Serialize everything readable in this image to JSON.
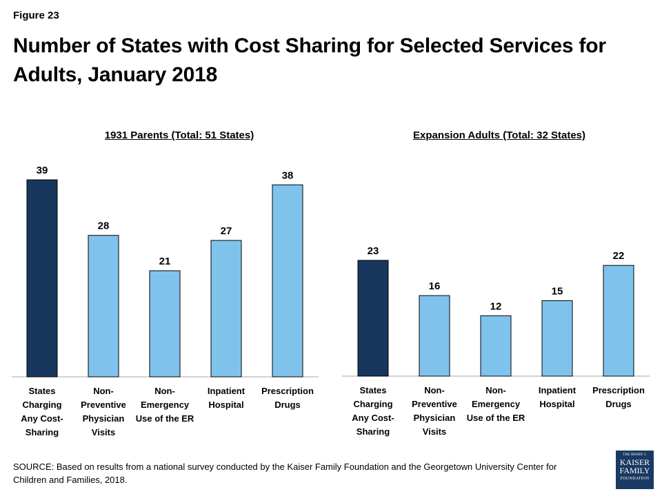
{
  "figure_label": "Figure 23",
  "title": "Number of States with Cost Sharing for Selected Services for Adults, January 2018",
  "colors": {
    "highlight": "#17375e",
    "default": "#7fc3ec",
    "edge": "#000000"
  },
  "chart_data": [
    {
      "type": "bar",
      "title": "1931 Parents (Total: 51 States)",
      "categories": [
        "States Charging Any Cost-Sharing",
        "Non-Preventive Physician Visits",
        "Non-Emergency Use of the ER",
        "Inpatient Hospital",
        "Prescription Drugs"
      ],
      "category_lines": [
        [
          "States",
          "Charging",
          "Any Cost-",
          "Sharing"
        ],
        [
          "Non-",
          "Preventive",
          "Physician",
          "Visits"
        ],
        [
          "Non-",
          "Emergency",
          "Use of the ER"
        ],
        [
          "Inpatient",
          "Hospital"
        ],
        [
          "Prescription",
          "Drugs"
        ]
      ],
      "values": [
        39,
        28,
        21,
        27,
        38
      ],
      "data_labels": [
        "39",
        "28",
        "21",
        "27",
        "38"
      ],
      "bar_colors": [
        "#17375e",
        "#7fc3ec",
        "#7fc3ec",
        "#7fc3ec",
        "#7fc3ec"
      ],
      "ylim": [
        0,
        39
      ]
    },
    {
      "type": "bar",
      "title": "Expansion Adults (Total: 32 States)",
      "categories": [
        "States Charging Any Cost-Sharing",
        "Non-Preventive Physician Visits",
        "Non-Emergency Use of the ER",
        "Inpatient Hospital",
        "Prescription Drugs"
      ],
      "category_lines": [
        [
          "States",
          "Charging",
          "Any Cost-",
          "Sharing"
        ],
        [
          "Non-",
          "Preventive",
          "Physician",
          "Visits"
        ],
        [
          "Non-",
          "Emergency",
          "Use of the ER"
        ],
        [
          "Inpatient",
          "Hospital"
        ],
        [
          "Prescription",
          "Drugs"
        ]
      ],
      "values": [
        23,
        16,
        12,
        15,
        22
      ],
      "data_labels": [
        "23",
        "16",
        "12",
        "15",
        "22"
      ],
      "bar_colors": [
        "#17375e",
        "#7fc3ec",
        "#7fc3ec",
        "#7fc3ec",
        "#7fc3ec"
      ],
      "ylim": [
        0,
        39
      ]
    }
  ],
  "source": "SOURCE: Based on results from a national survey conducted by the Kaiser Family Foundation and the Georgetown University Center for Children and Families, 2018.",
  "logo": {
    "line1": "THE HENRY J.",
    "line2": "KAISER",
    "line3": "FAMILY",
    "line4": "FOUNDATION"
  }
}
